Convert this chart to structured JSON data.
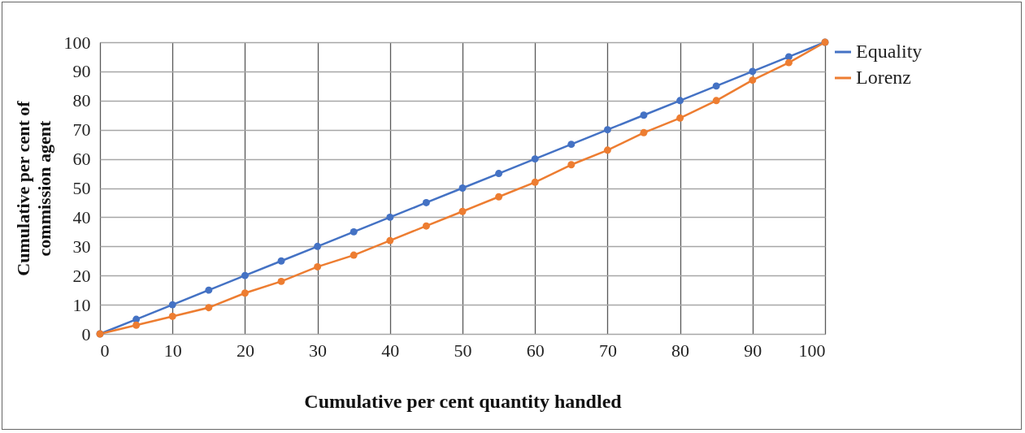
{
  "chart_data": {
    "type": "line",
    "xlabel": "Cumulative per cent quantity handled",
    "ylabel": "Cumulative per cent of commission agent",
    "x": [
      0,
      5,
      10,
      15,
      20,
      25,
      30,
      35,
      40,
      45,
      50,
      55,
      60,
      65,
      70,
      75,
      80,
      85,
      90,
      95,
      100
    ],
    "series": [
      {
        "name": "Equality",
        "color": "#4472c4",
        "values": [
          0,
          5,
          10,
          15,
          20,
          25,
          30,
          35,
          40,
          45,
          50,
          55,
          60,
          65,
          70,
          75,
          80,
          85,
          90,
          95,
          100
        ]
      },
      {
        "name": "Lorenz",
        "color": "#ed7d31",
        "values": [
          0,
          3,
          6,
          9,
          14,
          18,
          23,
          27,
          32,
          37,
          42,
          47,
          52,
          58,
          63,
          69,
          74,
          80,
          87,
          93,
          100
        ]
      }
    ],
    "xlim": [
      0,
      100
    ],
    "xticks": [
      0,
      10,
      20,
      30,
      40,
      50,
      60,
      70,
      80,
      90,
      100
    ],
    "ylim": [
      0,
      100
    ],
    "yticks": [
      0,
      10,
      20,
      30,
      40,
      50,
      60,
      70,
      80,
      90,
      100
    ],
    "grid": true,
    "legend": "right",
    "marker": "circle",
    "line_style": "solid"
  }
}
